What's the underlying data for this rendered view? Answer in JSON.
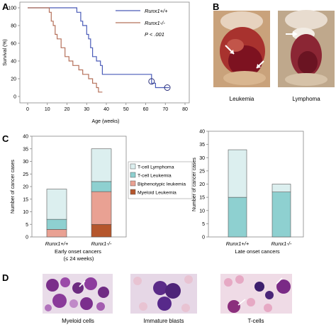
{
  "panels": {
    "A": {
      "label": "A",
      "chart_data": {
        "type": "line",
        "title": "",
        "xlabel": "Age (weeks)",
        "ylabel": "Survival (%)",
        "xlim": [
          0,
          80
        ],
        "ylim": [
          0,
          100
        ],
        "xticks": [
          "0",
          "10",
          "20",
          "30",
          "40",
          "50",
          "60",
          "70",
          "80"
        ],
        "yticks": [
          "0",
          "20",
          "40",
          "60",
          "80",
          "100"
        ],
        "legend_position": "top-right",
        "annotation": "P < .001",
        "series": [
          {
            "name": "Runx1+/+",
            "color": "#4a5bb8",
            "step": true,
            "x": [
              0,
              25,
              25,
              27,
              27,
              28,
              28,
              30,
              30,
              31,
              31,
              32,
              32,
              33,
              33,
              35,
              35,
              37,
              37,
              38,
              38,
              63,
              63,
              65,
              65,
              72
            ],
            "y": [
              100,
              100,
              95,
              95,
              85,
              85,
              80,
              80,
              70,
              70,
              65,
              65,
              55,
              55,
              45,
              45,
              40,
              40,
              35,
              35,
              25,
              25,
              15,
              15,
              10,
              10
            ],
            "censored": [
              [
                63,
                17
              ],
              [
                71,
                10
              ]
            ]
          },
          {
            "name": "Runx1-/-",
            "color": "#b5705a",
            "step": true,
            "x": [
              0,
              11,
              11,
              12,
              12,
              13,
              13,
              14,
              14,
              15,
              15,
              17,
              17,
              19,
              19,
              21,
              21,
              23,
              23,
              26,
              26,
              28,
              28,
              31,
              31,
              33,
              33,
              35,
              35,
              36,
              36,
              38
            ],
            "y": [
              100,
              100,
              95,
              95,
              85,
              85,
              80,
              80,
              70,
              70,
              65,
              65,
              55,
              55,
              45,
              45,
              40,
              40,
              35,
              35,
              30,
              30,
              25,
              25,
              20,
              20,
              15,
              15,
              10,
              10,
              5,
              5
            ]
          }
        ]
      }
    },
    "B": {
      "label": "B",
      "images": [
        {
          "caption": "Leukemia"
        },
        {
          "caption": "Lymphoma"
        }
      ]
    },
    "C": {
      "label": "C",
      "chart_data": [
        {
          "type": "bar",
          "stacked": true,
          "ylabel": "Number of cancer cases",
          "ylim": [
            0,
            40
          ],
          "yticks": [
            "0",
            "5",
            "10",
            "15",
            "20",
            "25",
            "30",
            "35",
            "40"
          ],
          "categories": [
            "Runx1+/+",
            "Runx1-/-"
          ],
          "group_label": "Early onset cancers\n(≤ 24 weeks)",
          "legend_position": "right",
          "series": [
            {
              "name": "Myeloid Leukemia",
              "color": "#b5562c",
              "values": [
                0,
                5
              ]
            },
            {
              "name": "Biphenotypic leukemia",
              "color": "#e9a193",
              "values": [
                3,
                13
              ]
            },
            {
              "name": "T-cell Leukemia",
              "color": "#8ed0d0",
              "values": [
                4,
                4
              ]
            },
            {
              "name": "T-cell Lymphoma",
              "color": "#dcefef",
              "values": [
                12,
                13
              ]
            }
          ]
        },
        {
          "type": "bar",
          "stacked": true,
          "ylabel": "Number of cancer cases",
          "ylim": [
            0,
            40
          ],
          "yticks": [
            "0",
            "5",
            "10",
            "15",
            "20",
            "25",
            "30",
            "35",
            "40"
          ],
          "categories": [
            "Runx1+/+",
            "Runx1-/-"
          ],
          "group_label": "Late onset cancers",
          "series": [
            {
              "name": "T-cell Leukemia",
              "color": "#8ed0d0",
              "values": [
                15,
                17
              ]
            },
            {
              "name": "T-cell Lymphoma",
              "color": "#dcefef",
              "values": [
                18,
                3
              ]
            }
          ]
        }
      ]
    },
    "D": {
      "label": "D",
      "images": [
        {
          "caption": "Myeloid cells"
        },
        {
          "caption": "Immature blasts"
        },
        {
          "caption": "T-cells"
        }
      ]
    }
  }
}
